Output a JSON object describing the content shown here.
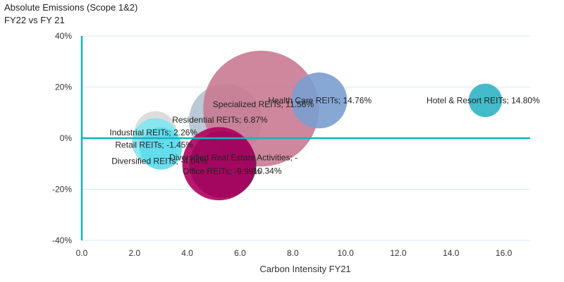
{
  "chart_data": {
    "type": "bubble",
    "title_lines": [
      "Absolute Emissions (Scope 1&2)",
      "FY22 vs FY 21"
    ],
    "xlabel": "Carbon Intensity FY21",
    "ylabel": "",
    "xlim": [
      0,
      17
    ],
    "ylim": [
      -40,
      40
    ],
    "x_ticks": [
      0,
      2,
      4,
      6,
      8,
      10,
      12,
      14,
      16
    ],
    "x_tick_labels": [
      "0.0",
      "2.0",
      "4.0",
      "6.0",
      "8.0",
      "10.0",
      "12.0",
      "14.0",
      "16.0"
    ],
    "y_ticks": [
      -40,
      -20,
      0,
      20,
      40
    ],
    "y_tick_labels": [
      "-40%",
      "-20%",
      "0%",
      "20%",
      "40%"
    ],
    "grid": "horizontal",
    "series": [
      {
        "name": "Industrial REITs",
        "label": "Industrial REITs; 2.26%",
        "x": 2.8,
        "y": 2.26,
        "size": 4,
        "color": "#d9d9d9"
      },
      {
        "name": "Retail REITs",
        "label": "Retail REITs; -1.45%",
        "x": 2.8,
        "y": -1.45,
        "size": 5,
        "color": "#7fe5f0"
      },
      {
        "name": "Diversified REITs",
        "label": "Diversified REITs; -4.04%",
        "x": 3.0,
        "y": -4.04,
        "size": 4,
        "color": "#5ddcec"
      },
      {
        "name": "Residential REITs",
        "label": "Residential REITs; 6.87%",
        "x": 5.45,
        "y": 6.87,
        "size": 12,
        "color": "#b4c2d2"
      },
      {
        "name": "Specialized REITs",
        "label": "Specialized REITs; 11.56%",
        "x": 6.8,
        "y": 11.56,
        "size": 30,
        "color": "#c97a92"
      },
      {
        "name": "Health Care REITs",
        "label": "Health Care REITs; 14.76%",
        "x": 9.0,
        "y": 14.76,
        "size": 7,
        "color": "#7a9fd0"
      },
      {
        "name": "Hotel & Resort REITs",
        "label": "Hotel & Resort REITs; 14.80%",
        "x": 15.3,
        "y": 14.8,
        "size": 2.5,
        "color": "#2fb4c4"
      },
      {
        "name": "Diversified Real Estate Activities",
        "label_lines": [
          "Diversified Real Estate Activities; -",
          "10.34%"
        ],
        "x": 5.35,
        "y": -10.34,
        "size": 10,
        "color": "#1d3b5e"
      },
      {
        "name": "Office REITs",
        "label": "Office REITs; -9.99%",
        "x": 5.2,
        "y": -9.99,
        "size": 12,
        "color": "#b0005e"
      }
    ]
  },
  "colors": {
    "axis": "#1ab0c0",
    "grid": "#d6eef2",
    "text": "#222222"
  }
}
